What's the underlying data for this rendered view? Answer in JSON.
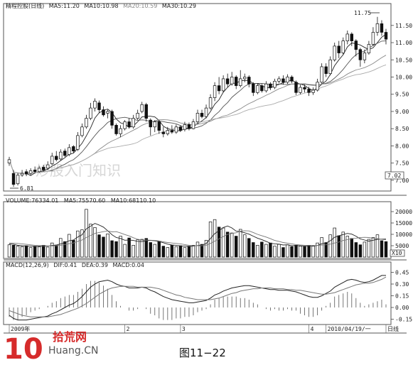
{
  "chart_data": [
    {
      "type": "candlestick",
      "title": "精程控股(日线)",
      "legend": [
        {
          "label": "MA5:",
          "value": "11.20",
          "color": "#222222"
        },
        {
          "label": "MA10:",
          "value": "10.98",
          "color": "#555555"
        },
        {
          "label": "MA20:",
          "value": "10.59",
          "color": "#888888"
        },
        {
          "label": "MA30:",
          "value": "10.29",
          "color": "#aaaaaa"
        }
      ],
      "ylim": [
        6.75,
        11.95
      ],
      "yticks": [
        "11.50",
        "11.00",
        "10.50",
        "10.00",
        "9.50",
        "9.00",
        "8.50",
        "8.00",
        "7.50",
        "7.00"
      ],
      "last_price_tag": "7.02",
      "annotations": {
        "high": "11.75",
        "low": "6.81",
        "watermark": "炒股入门知识"
      },
      "candles": [
        {
          "o": 7.5,
          "c": 7.6,
          "h": 7.68,
          "l": 7.42
        },
        {
          "o": 7.2,
          "c": 6.88,
          "h": 7.3,
          "l": 6.81
        },
        {
          "o": 6.9,
          "c": 7.15,
          "h": 7.22,
          "l": 6.85
        },
        {
          "o": 7.15,
          "c": 7.2,
          "h": 7.3,
          "l": 7.1
        },
        {
          "o": 7.25,
          "c": 7.18,
          "h": 7.32,
          "l": 7.12
        },
        {
          "o": 7.2,
          "c": 7.28,
          "h": 7.35,
          "l": 7.15
        },
        {
          "o": 7.3,
          "c": 7.25,
          "h": 7.4,
          "l": 7.2
        },
        {
          "o": 7.25,
          "c": 7.35,
          "h": 7.42,
          "l": 7.22
        },
        {
          "o": 7.38,
          "c": 7.3,
          "h": 7.45,
          "l": 7.25
        },
        {
          "o": 7.35,
          "c": 7.45,
          "h": 7.55,
          "l": 7.3
        },
        {
          "o": 7.48,
          "c": 7.7,
          "h": 7.8,
          "l": 7.45
        },
        {
          "o": 7.7,
          "c": 7.6,
          "h": 7.85,
          "l": 7.55
        },
        {
          "o": 7.62,
          "c": 7.82,
          "h": 7.9,
          "l": 7.58
        },
        {
          "o": 7.85,
          "c": 7.72,
          "h": 7.92,
          "l": 7.68
        },
        {
          "o": 7.75,
          "c": 7.95,
          "h": 8.05,
          "l": 7.7
        },
        {
          "o": 7.98,
          "c": 7.85,
          "h": 8.02,
          "l": 7.8
        },
        {
          "o": 7.9,
          "c": 8.3,
          "h": 8.4,
          "l": 7.85
        },
        {
          "o": 8.3,
          "c": 8.55,
          "h": 8.65,
          "l": 8.25
        },
        {
          "o": 8.55,
          "c": 8.8,
          "h": 8.9,
          "l": 8.5
        },
        {
          "o": 8.8,
          "c": 9.1,
          "h": 9.25,
          "l": 8.75
        },
        {
          "o": 9.1,
          "c": 9.3,
          "h": 9.38,
          "l": 9.0
        },
        {
          "o": 9.25,
          "c": 9.05,
          "h": 9.32,
          "l": 8.95
        },
        {
          "o": 9.05,
          "c": 8.9,
          "h": 9.15,
          "l": 8.85
        },
        {
          "o": 8.95,
          "c": 9.0,
          "h": 9.05,
          "l": 8.8
        },
        {
          "o": 9.0,
          "c": 8.6,
          "h": 9.05,
          "l": 8.5
        },
        {
          "o": 8.6,
          "c": 8.35,
          "h": 8.65,
          "l": 8.3
        },
        {
          "o": 8.35,
          "c": 8.5,
          "h": 8.6,
          "l": 8.25
        },
        {
          "o": 8.5,
          "c": 8.7,
          "h": 8.75,
          "l": 8.45
        },
        {
          "o": 8.7,
          "c": 8.55,
          "h": 8.8,
          "l": 8.5
        },
        {
          "o": 8.55,
          "c": 8.8,
          "h": 8.9,
          "l": 8.5
        },
        {
          "o": 8.8,
          "c": 8.95,
          "h": 9.05,
          "l": 8.75
        },
        {
          "o": 9.0,
          "c": 9.2,
          "h": 9.28,
          "l": 8.95
        },
        {
          "o": 9.2,
          "c": 8.8,
          "h": 9.25,
          "l": 8.7
        },
        {
          "o": 8.75,
          "c": 8.55,
          "h": 8.8,
          "l": 8.3
        },
        {
          "o": 8.55,
          "c": 8.7,
          "h": 8.75,
          "l": 8.4
        },
        {
          "o": 8.7,
          "c": 8.45,
          "h": 8.75,
          "l": 8.35
        },
        {
          "o": 8.4,
          "c": 8.35,
          "h": 8.55,
          "l": 8.25
        },
        {
          "o": 8.35,
          "c": 8.45,
          "h": 8.55,
          "l": 8.3
        },
        {
          "o": 8.45,
          "c": 8.4,
          "h": 8.6,
          "l": 8.35
        },
        {
          "o": 8.4,
          "c": 8.55,
          "h": 8.62,
          "l": 8.35
        },
        {
          "o": 8.55,
          "c": 8.45,
          "h": 8.6,
          "l": 8.4
        },
        {
          "o": 8.48,
          "c": 8.62,
          "h": 8.7,
          "l": 8.42
        },
        {
          "o": 8.62,
          "c": 8.5,
          "h": 8.68,
          "l": 8.45
        },
        {
          "o": 8.5,
          "c": 8.7,
          "h": 8.78,
          "l": 8.48
        },
        {
          "o": 8.7,
          "c": 8.95,
          "h": 9.05,
          "l": 8.65
        },
        {
          "o": 8.95,
          "c": 8.85,
          "h": 9.05,
          "l": 8.8
        },
        {
          "o": 8.85,
          "c": 9.1,
          "h": 9.2,
          "l": 8.8
        },
        {
          "o": 9.1,
          "c": 9.4,
          "h": 9.5,
          "l": 9.05
        },
        {
          "o": 9.4,
          "c": 9.75,
          "h": 9.85,
          "l": 9.3
        },
        {
          "o": 9.75,
          "c": 9.6,
          "h": 10.0,
          "l": 9.5
        },
        {
          "o": 9.6,
          "c": 9.95,
          "h": 10.05,
          "l": 9.55
        },
        {
          "o": 9.95,
          "c": 9.8,
          "h": 10.1,
          "l": 9.7
        },
        {
          "o": 9.8,
          "c": 10.0,
          "h": 10.15,
          "l": 9.75
        },
        {
          "o": 10.0,
          "c": 9.75,
          "h": 10.05,
          "l": 9.65
        },
        {
          "o": 9.75,
          "c": 9.95,
          "h": 10.2,
          "l": 9.7
        },
        {
          "o": 9.95,
          "c": 10.0,
          "h": 10.1,
          "l": 9.85
        },
        {
          "o": 10.0,
          "c": 9.8,
          "h": 10.05,
          "l": 9.7
        },
        {
          "o": 9.8,
          "c": 9.55,
          "h": 9.85,
          "l": 9.45
        },
        {
          "o": 9.55,
          "c": 9.75,
          "h": 9.82,
          "l": 9.5
        },
        {
          "o": 9.75,
          "c": 9.6,
          "h": 9.8,
          "l": 9.55
        },
        {
          "o": 9.6,
          "c": 9.8,
          "h": 9.88,
          "l": 9.55
        },
        {
          "o": 9.8,
          "c": 9.7,
          "h": 9.85,
          "l": 9.62
        },
        {
          "o": 9.7,
          "c": 9.88,
          "h": 9.95,
          "l": 9.65
        },
        {
          "o": 9.88,
          "c": 9.95,
          "h": 10.02,
          "l": 9.82
        },
        {
          "o": 9.95,
          "c": 9.85,
          "h": 10.05,
          "l": 9.78
        },
        {
          "o": 9.85,
          "c": 10.0,
          "h": 10.08,
          "l": 9.8
        },
        {
          "o": 10.0,
          "c": 9.88,
          "h": 10.05,
          "l": 9.82
        },
        {
          "o": 9.85,
          "c": 9.55,
          "h": 9.9,
          "l": 9.48
        },
        {
          "o": 9.55,
          "c": 9.7,
          "h": 9.78,
          "l": 9.5
        },
        {
          "o": 9.7,
          "c": 9.65,
          "h": 9.78,
          "l": 9.55
        },
        {
          "o": 9.65,
          "c": 9.55,
          "h": 9.72,
          "l": 9.45
        },
        {
          "o": 9.55,
          "c": 9.62,
          "h": 9.7,
          "l": 9.48
        },
        {
          "o": 9.62,
          "c": 9.85,
          "h": 9.95,
          "l": 9.58
        },
        {
          "o": 9.85,
          "c": 10.3,
          "h": 10.4,
          "l": 9.8
        },
        {
          "o": 10.3,
          "c": 10.1,
          "h": 10.4,
          "l": 10.0
        },
        {
          "o": 10.1,
          "c": 10.5,
          "h": 10.6,
          "l": 10.05
        },
        {
          "o": 10.5,
          "c": 10.9,
          "h": 11.0,
          "l": 10.45
        },
        {
          "o": 10.9,
          "c": 10.7,
          "h": 11.05,
          "l": 10.55
        },
        {
          "o": 10.7,
          "c": 11.05,
          "h": 11.15,
          "l": 10.65
        },
        {
          "o": 11.05,
          "c": 11.25,
          "h": 11.35,
          "l": 10.95
        },
        {
          "o": 11.25,
          "c": 11.05,
          "h": 11.3,
          "l": 10.9
        },
        {
          "o": 11.05,
          "c": 10.8,
          "h": 11.1,
          "l": 10.6
        },
        {
          "o": 10.8,
          "c": 10.5,
          "h": 10.85,
          "l": 10.3
        },
        {
          "o": 10.5,
          "c": 10.7,
          "h": 10.8,
          "l": 10.4
        },
        {
          "o": 10.7,
          "c": 10.95,
          "h": 11.05,
          "l": 10.65
        },
        {
          "o": 10.95,
          "c": 11.3,
          "h": 11.45,
          "l": 10.9
        },
        {
          "o": 11.3,
          "c": 11.55,
          "h": 11.75,
          "l": 11.2
        },
        {
          "o": 11.55,
          "c": 11.3,
          "h": 11.65,
          "l": 11.2
        },
        {
          "o": 11.3,
          "c": 11.1,
          "h": 11.4,
          "l": 10.95
        }
      ]
    },
    {
      "type": "bar",
      "title": "VOLUME:76334.01",
      "legend": [
        {
          "label": "MA5:",
          "value": "75570.60",
          "color": "#222222"
        },
        {
          "label": "MA10:",
          "value": "68110.10",
          "color": "#777777"
        }
      ],
      "ylim": [
        0,
        22500
      ],
      "yticks": [
        "20000",
        "15000",
        "10000",
        "5000"
      ],
      "unit_tag": "X10",
      "values": [
        5400,
        5200,
        4800,
        4600,
        5000,
        4200,
        4800,
        4500,
        5200,
        4400,
        6200,
        5200,
        8200,
        6800,
        10000,
        7400,
        11500,
        12000,
        21000,
        14500,
        13000,
        9800,
        8800,
        10200,
        7200,
        6800,
        9200,
        5600,
        8400,
        5200,
        7600,
        7800,
        8200,
        6400,
        5600,
        6800,
        4800,
        4200,
        5200,
        4600,
        5000,
        4200,
        4800,
        5200,
        6600,
        5600,
        7400,
        15500,
        16500,
        13200,
        12800,
        11000,
        10600,
        9200,
        12200,
        9800,
        8200,
        6400,
        5200,
        6600,
        5600,
        6200,
        4800,
        5600,
        4200,
        5400,
        4600,
        5200,
        4800,
        4600,
        5200,
        4800,
        6200,
        8600,
        6400,
        9800,
        12800,
        9400,
        11000,
        9200,
        8200,
        6400,
        5400,
        6600,
        7800,
        8600,
        9800,
        7200,
        6800
      ],
      "ma5": [
        5800,
        5600,
        5200,
        5000,
        4900,
        4800,
        4700,
        4700,
        4800,
        4800,
        5100,
        5300,
        5800,
        6300,
        7200,
        7500,
        8800,
        9800,
        12400,
        13600,
        14800,
        14100,
        13200,
        11600,
        9800,
        8600,
        8200,
        7400,
        7500,
        7300,
        6900,
        6800,
        7200,
        7300,
        7200,
        6800,
        6300,
        5700,
        5300,
        5200,
        4900,
        4800,
        4700,
        4800,
        5100,
        5300,
        5900,
        8200,
        10300,
        11600,
        13000,
        13700,
        12800,
        11400,
        11200,
        10700,
        10100,
        9200,
        8300,
        7700,
        6900,
        6100,
        5800,
        5700,
        5300,
        5400,
        5000,
        5100,
        4900,
        4900,
        4900,
        4900,
        5100,
        5900,
        6200,
        7200,
        8700,
        9400,
        9900,
        10400,
        10100,
        9200,
        8000,
        7500,
        7000,
        7400,
        7800,
        7900,
        7900
      ],
      "ma10": [
        6200,
        6100,
        6000,
        5800,
        5600,
        5400,
        5200,
        5100,
        5000,
        4900,
        4900,
        5000,
        5200,
        5500,
        5900,
        6200,
        6900,
        7500,
        8600,
        9500,
        10400,
        10800,
        11200,
        11500,
        11100,
        11200,
        10600,
        9900,
        9300,
        8500,
        7800,
        7500,
        7500,
        7400,
        7300,
        7100,
        6700,
        6400,
        6200,
        6000,
        5800,
        5500,
        5200,
        5000,
        5000,
        5000,
        5200,
        6000,
        7000,
        8000,
        9000,
        10000,
        10400,
        10700,
        11400,
        11600,
        11500,
        10800,
        10000,
        9400,
        8800,
        8100,
        7300,
        6900,
        6400,
        6100,
        5800,
        5500,
        5300,
        5200,
        5100,
        5100,
        5100,
        5300,
        5400,
        5700,
        6200,
        6600,
        7300,
        7700,
        8100,
        8300,
        8600,
        8700,
        8600,
        8300,
        8100,
        7800,
        7600
      ]
    },
    {
      "type": "bar",
      "title": "MACD(12,26,9)",
      "legend": [
        {
          "label": "DIF:",
          "value": "0.41",
          "color": "#222222"
        },
        {
          "label": "DEA:",
          "value": "0.39",
          "color": "#777777"
        },
        {
          "label": "MACD:",
          "value": "0.04",
          "color": "#222222"
        }
      ],
      "ylim": [
        -0.2,
        0.5
      ],
      "yticks": [
        "0.45",
        "0.30",
        "0.15",
        "0.00",
        "-0.15"
      ],
      "x_tick_labels": [
        {
          "label": "2009年",
          "index": 0
        },
        {
          "label": "2",
          "index": 27
        },
        {
          "label": "3",
          "index": 40
        },
        {
          "label": "4",
          "index": 70
        },
        {
          "label": "2010/04/19/一",
          "index": 74
        },
        {
          "label": "日线",
          "index": 88
        }
      ],
      "dif": [
        -0.1,
        -0.14,
        -0.16,
        -0.16,
        -0.16,
        -0.15,
        -0.14,
        -0.13,
        -0.12,
        -0.11,
        -0.08,
        -0.06,
        -0.03,
        0.0,
        0.03,
        0.05,
        0.09,
        0.14,
        0.2,
        0.26,
        0.3,
        0.33,
        0.34,
        0.35,
        0.33,
        0.3,
        0.28,
        0.27,
        0.25,
        0.25,
        0.25,
        0.26,
        0.25,
        0.22,
        0.2,
        0.17,
        0.14,
        0.12,
        0.1,
        0.09,
        0.08,
        0.07,
        0.06,
        0.06,
        0.07,
        0.08,
        0.09,
        0.12,
        0.16,
        0.18,
        0.21,
        0.23,
        0.25,
        0.26,
        0.27,
        0.28,
        0.28,
        0.27,
        0.26,
        0.25,
        0.24,
        0.23,
        0.23,
        0.22,
        0.22,
        0.22,
        0.21,
        0.2,
        0.18,
        0.16,
        0.14,
        0.13,
        0.13,
        0.15,
        0.18,
        0.21,
        0.26,
        0.29,
        0.32,
        0.35,
        0.36,
        0.35,
        0.33,
        0.32,
        0.33,
        0.35,
        0.38,
        0.41,
        0.41
      ],
      "dea": [
        -0.04,
        -0.06,
        -0.08,
        -0.1,
        -0.11,
        -0.12,
        -0.12,
        -0.12,
        -0.12,
        -0.12,
        -0.11,
        -0.1,
        -0.09,
        -0.07,
        -0.05,
        -0.03,
        -0.01,
        0.02,
        0.05,
        0.09,
        0.13,
        0.17,
        0.2,
        0.23,
        0.25,
        0.26,
        0.27,
        0.27,
        0.27,
        0.27,
        0.26,
        0.26,
        0.26,
        0.26,
        0.25,
        0.24,
        0.22,
        0.2,
        0.18,
        0.16,
        0.15,
        0.13,
        0.12,
        0.11,
        0.1,
        0.1,
        0.1,
        0.1,
        0.11,
        0.12,
        0.14,
        0.16,
        0.18,
        0.19,
        0.21,
        0.22,
        0.23,
        0.24,
        0.24,
        0.25,
        0.25,
        0.25,
        0.24,
        0.24,
        0.24,
        0.23,
        0.23,
        0.22,
        0.22,
        0.21,
        0.2,
        0.19,
        0.18,
        0.17,
        0.17,
        0.18,
        0.19,
        0.21,
        0.23,
        0.25,
        0.27,
        0.29,
        0.3,
        0.31,
        0.31,
        0.32,
        0.34,
        0.36,
        0.39
      ]
    }
  ],
  "figure": {
    "caption": "图11−22",
    "logo_digits": "10",
    "logo_cn": "拾荒网",
    "logo_domain": "Huang.CN"
  }
}
